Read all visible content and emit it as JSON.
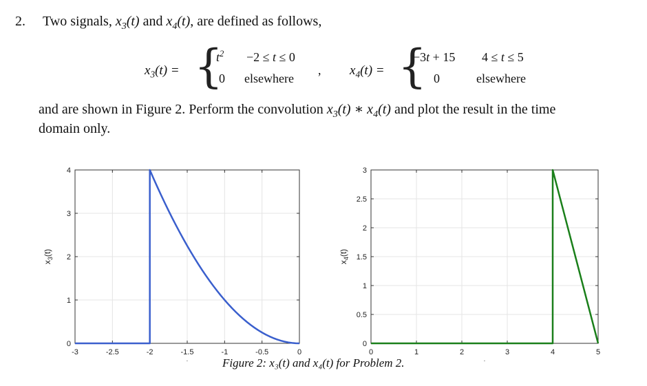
{
  "problem": {
    "number": "2.",
    "intro_text": "Two signals,",
    "and_word": "and",
    "defined_text": ", are defined as follows,",
    "x3": {
      "lhs": "x3(t) =",
      "case1_expr": "t²",
      "case1_cond": "−2 ≤ t ≤ 0",
      "case2_expr": "0",
      "case2_cond": "elsewhere"
    },
    "separator": ",",
    "x4": {
      "lhs": "x4(t) =",
      "case1_expr": "−3t + 15",
      "case1_cond": "4 ≤ t ≤ 5",
      "case2_expr": "0",
      "case2_cond": "elsewhere"
    },
    "body_line1": "and are shown in Figure 2.  Perform the convolution",
    "body_line1_end": "and plot the result in the time",
    "body_line2": "domain only."
  },
  "figure_caption": "Figure 2: x₃(t) and x₄(t) for Problem 2.",
  "chart_data": [
    {
      "type": "line",
      "color": "#3a5fcd",
      "xlabel": "t",
      "ylabel": "x3(t)",
      "xlim": [
        -3,
        0
      ],
      "ylim": [
        0,
        4
      ],
      "xticks": [
        "-3",
        "-2.5",
        "-2",
        "-1.5",
        "-1",
        "-0.5",
        "0"
      ],
      "yticks": [
        "0",
        "1",
        "2",
        "3",
        "4"
      ],
      "grid": true,
      "series": [
        {
          "x": [
            -3,
            -2,
            -2,
            -1.75,
            -1.5,
            -1.25,
            -1,
            -0.75,
            -0.5,
            -0.25,
            0
          ],
          "y": [
            0,
            0,
            4,
            3.0625,
            2.25,
            1.5625,
            1,
            0.5625,
            0.25,
            0.0625,
            0
          ]
        }
      ]
    },
    {
      "type": "line",
      "color": "#1a7f1a",
      "xlabel": "t",
      "ylabel": "x4(t)",
      "xlim": [
        0,
        5
      ],
      "ylim": [
        0,
        3
      ],
      "xticks": [
        "0",
        "1",
        "2",
        "3",
        "4",
        "5"
      ],
      "yticks": [
        "0",
        "0.5",
        "1",
        "1.5",
        "2",
        "2.5",
        "3"
      ],
      "grid": true,
      "series": [
        {
          "x": [
            0,
            4,
            4,
            5
          ],
          "y": [
            0,
            0,
            3,
            0
          ]
        }
      ]
    }
  ]
}
